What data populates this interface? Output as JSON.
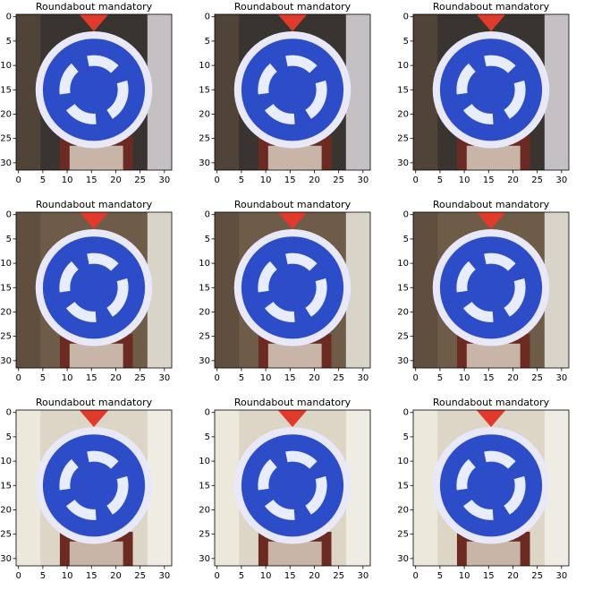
{
  "chart_data": [
    {
      "type": "image",
      "title": "Roundabout mandatory",
      "xlim": [
        -0.5,
        31.5
      ],
      "ylim": [
        31.5,
        -0.5
      ],
      "xticks": [
        0,
        5,
        10,
        15,
        20,
        25,
        30
      ],
      "yticks": [
        0,
        5,
        10,
        15,
        20,
        25,
        30
      ]
    },
    {
      "type": "image",
      "title": "Roundabout mandatory",
      "xlim": [
        -0.5,
        31.5
      ],
      "ylim": [
        31.5,
        -0.5
      ],
      "xticks": [
        0,
        5,
        10,
        15,
        20,
        25,
        30
      ],
      "yticks": [
        0,
        5,
        10,
        15,
        20,
        25,
        30
      ]
    },
    {
      "type": "image",
      "title": "Roundabout mandatory",
      "xlim": [
        -0.5,
        31.5
      ],
      "ylim": [
        31.5,
        -0.5
      ],
      "xticks": [
        0,
        5,
        10,
        15,
        20,
        25,
        30
      ],
      "yticks": [
        0,
        5,
        10,
        15,
        20,
        25,
        30
      ]
    },
    {
      "type": "image",
      "title": "Roundabout mandatory",
      "xlim": [
        -0.5,
        31.5
      ],
      "ylim": [
        31.5,
        -0.5
      ],
      "xticks": [
        0,
        5,
        10,
        15,
        20,
        25,
        30
      ],
      "yticks": [
        0,
        5,
        10,
        15,
        20,
        25,
        30
      ]
    },
    {
      "type": "image",
      "title": "Roundabout mandatory",
      "xlim": [
        -0.5,
        31.5
      ],
      "ylim": [
        31.5,
        -0.5
      ],
      "xticks": [
        0,
        5,
        10,
        15,
        20,
        25,
        30
      ],
      "yticks": [
        0,
        5,
        10,
        15,
        20,
        25,
        30
      ]
    },
    {
      "type": "image",
      "title": "Roundabout mandatory",
      "xlim": [
        -0.5,
        31.5
      ],
      "ylim": [
        31.5,
        -0.5
      ],
      "xticks": [
        0,
        5,
        10,
        15,
        20,
        25,
        30
      ],
      "yticks": [
        0,
        5,
        10,
        15,
        20,
        25,
        30
      ]
    },
    {
      "type": "image",
      "title": "Roundabout mandatory",
      "xlim": [
        -0.5,
        31.5
      ],
      "ylim": [
        31.5,
        -0.5
      ],
      "xticks": [
        0,
        5,
        10,
        15,
        20,
        25,
        30
      ],
      "yticks": [
        0,
        5,
        10,
        15,
        20,
        25,
        30
      ]
    },
    {
      "type": "image",
      "title": "Roundabout mandatory",
      "xlim": [
        -0.5,
        31.5
      ],
      "ylim": [
        31.5,
        -0.5
      ],
      "xticks": [
        0,
        5,
        10,
        15,
        20,
        25,
        30
      ],
      "yticks": [
        0,
        5,
        10,
        15,
        20,
        25,
        30
      ]
    },
    {
      "type": "image",
      "title": "Roundabout mandatory",
      "xlim": [
        -0.5,
        31.5
      ],
      "ylim": [
        31.5,
        -0.5
      ],
      "xticks": [
        0,
        5,
        10,
        15,
        20,
        25,
        30
      ],
      "yticks": [
        0,
        5,
        10,
        15,
        20,
        25,
        30
      ]
    }
  ]
}
